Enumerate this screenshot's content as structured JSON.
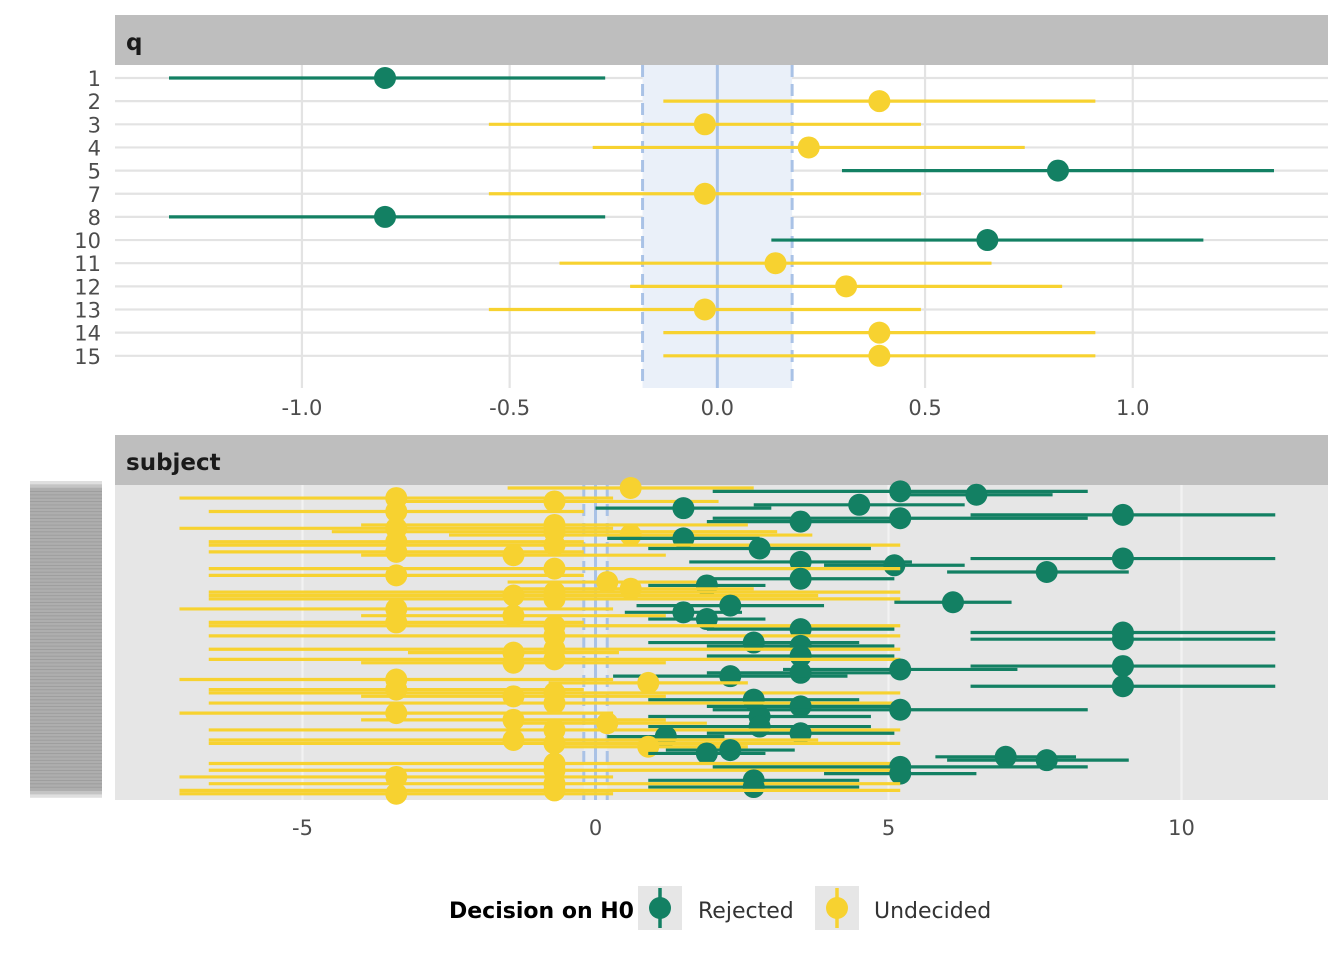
{
  "colors": {
    "rejected": "#138063",
    "undecided": "#F7D230",
    "rope_fill": "#EAF0F9",
    "rope_line": "#A9C2E6",
    "strip_bg": "#BEBEBE",
    "panel_grey": "#E6E6E6",
    "grid": "#E3E3E3",
    "grid_on_grey": "#F2F2F2"
  },
  "legend": {
    "title": "Decision on H0",
    "items": [
      {
        "key": "rejected",
        "label": "Rejected"
      },
      {
        "key": "undecided",
        "label": "Undecided"
      }
    ]
  },
  "chart_data": [
    {
      "type": "forest",
      "facet": "q",
      "x_ticks": [
        -1.0,
        -0.5,
        0.0,
        0.5,
        1.0
      ],
      "x_tick_labels": [
        "-1.0",
        "-0.5",
        "0.0",
        "0.5",
        "1.0"
      ],
      "xlim": [
        -1.45,
        1.47
      ],
      "rope": [
        -0.18,
        0.18
      ],
      "reference": 0,
      "rows": [
        {
          "label": "1",
          "est": -0.8,
          "lo": -1.32,
          "hi": -0.27,
          "decision": "rejected"
        },
        {
          "label": "2",
          "est": 0.39,
          "lo": -0.13,
          "hi": 0.91,
          "decision": "undecided"
        },
        {
          "label": "3",
          "est": -0.03,
          "lo": -0.55,
          "hi": 0.49,
          "decision": "undecided"
        },
        {
          "label": "4",
          "est": 0.22,
          "lo": -0.3,
          "hi": 0.74,
          "decision": "undecided"
        },
        {
          "label": "5",
          "est": 0.82,
          "lo": 0.3,
          "hi": 1.34,
          "decision": "rejected"
        },
        {
          "label": "7",
          "est": -0.03,
          "lo": -0.55,
          "hi": 0.49,
          "decision": "undecided"
        },
        {
          "label": "8",
          "est": -0.8,
          "lo": -1.32,
          "hi": -0.27,
          "decision": "rejected"
        },
        {
          "label": "10",
          "est": 0.65,
          "lo": 0.13,
          "hi": 1.17,
          "decision": "rejected"
        },
        {
          "label": "11",
          "est": 0.14,
          "lo": -0.38,
          "hi": 0.66,
          "decision": "undecided"
        },
        {
          "label": "12",
          "est": 0.31,
          "lo": -0.21,
          "hi": 0.83,
          "decision": "undecided"
        },
        {
          "label": "13",
          "est": -0.03,
          "lo": -0.55,
          "hi": 0.49,
          "decision": "undecided"
        },
        {
          "label": "14",
          "est": 0.39,
          "lo": -0.13,
          "hi": 0.91,
          "decision": "undecided"
        },
        {
          "label": "15",
          "est": 0.39,
          "lo": -0.13,
          "hi": 0.91,
          "decision": "undecided"
        }
      ]
    },
    {
      "type": "forest",
      "facet": "subject",
      "x_ticks": [
        -5,
        0,
        5,
        10
      ],
      "x_tick_labels": [
        "-5",
        "0",
        "5",
        "10"
      ],
      "xlim": [
        -8.2,
        12.5
      ],
      "rope": [
        -0.2,
        0.2
      ],
      "reference": 0,
      "y_labels_note": "Labels overlap and are illegible in the original",
      "rows": [
        {
          "est": 0.6,
          "lo": -1.5,
          "hi": 2.7,
          "decision": "undecided"
        },
        {
          "est": 5.2,
          "lo": 2.0,
          "hi": 8.4,
          "decision": "rejected"
        },
        {
          "est": 6.5,
          "lo": 5.2,
          "hi": 7.8,
          "decision": "rejected"
        },
        {
          "est": -3.4,
          "lo": -7.1,
          "hi": 0.3,
          "decision": "undecided"
        },
        {
          "est": -0.7,
          "lo": -3.5,
          "hi": 2.1,
          "decision": "undecided"
        },
        {
          "est": 4.5,
          "lo": 2.7,
          "hi": 6.3,
          "decision": "rejected"
        },
        {
          "est": 1.5,
          "lo": 0.0,
          "hi": 3.0,
          "decision": "rejected"
        },
        {
          "est": -3.4,
          "lo": -6.6,
          "hi": -0.2,
          "decision": "undecided"
        },
        {
          "est": 9.0,
          "lo": 6.4,
          "hi": 11.6,
          "decision": "rejected"
        },
        {
          "est": 5.2,
          "lo": 2.0,
          "hi": 8.4,
          "decision": "rejected"
        },
        {
          "est": 3.5,
          "lo": 1.9,
          "hi": 5.1,
          "decision": "rejected"
        },
        {
          "est": -0.7,
          "lo": -4.0,
          "hi": 2.6,
          "decision": "undecided"
        },
        {
          "est": -3.4,
          "lo": -7.1,
          "hi": 0.3,
          "decision": "undecided"
        },
        {
          "est": -0.7,
          "lo": -4.5,
          "hi": 3.1,
          "decision": "undecided"
        },
        {
          "est": 0.6,
          "lo": -2.5,
          "hi": 3.7,
          "decision": "undecided"
        },
        {
          "est": 1.5,
          "lo": 0.2,
          "hi": 2.8,
          "decision": "rejected"
        },
        {
          "est": -3.4,
          "lo": -6.6,
          "hi": -0.2,
          "decision": "undecided"
        },
        {
          "est": -0.7,
          "lo": -6.6,
          "hi": 5.2,
          "decision": "undecided"
        },
        {
          "est": 2.8,
          "lo": 0.9,
          "hi": 4.7,
          "decision": "rejected"
        },
        {
          "est": -3.4,
          "lo": -6.6,
          "hi": -0.2,
          "decision": "undecided"
        },
        {
          "est": -1.4,
          "lo": -4.0,
          "hi": 1.2,
          "decision": "undecided"
        },
        {
          "est": 9.0,
          "lo": 6.4,
          "hi": 11.6,
          "decision": "rejected"
        },
        {
          "est": 3.5,
          "lo": 1.6,
          "hi": 5.4,
          "decision": "rejected"
        },
        {
          "est": 5.1,
          "lo": 3.9,
          "hi": 6.3,
          "decision": "rejected"
        },
        {
          "est": -0.7,
          "lo": -6.6,
          "hi": 5.2,
          "decision": "undecided"
        },
        {
          "est": 7.7,
          "lo": 6.0,
          "hi": 9.1,
          "decision": "rejected"
        },
        {
          "est": -3.4,
          "lo": -6.6,
          "hi": -0.2,
          "decision": "undecided"
        },
        {
          "est": 3.5,
          "lo": 1.9,
          "hi": 5.1,
          "decision": "rejected"
        },
        {
          "est": 0.2,
          "lo": -1.5,
          "hi": 1.9,
          "decision": "undecided"
        },
        {
          "est": 1.9,
          "lo": 0.9,
          "hi": 2.9,
          "decision": "rejected"
        },
        {
          "est": 0.6,
          "lo": -1.5,
          "hi": 2.7,
          "decision": "undecided"
        },
        {
          "est": -0.7,
          "lo": -6.6,
          "hi": 5.2,
          "decision": "undecided"
        },
        {
          "est": -1.4,
          "lo": -6.6,
          "hi": 3.8,
          "decision": "undecided"
        },
        {
          "est": -0.7,
          "lo": -6.6,
          "hi": 5.2,
          "decision": "undecided"
        },
        {
          "est": 6.1,
          "lo": 5.1,
          "hi": 7.1,
          "decision": "rejected"
        },
        {
          "est": 2.3,
          "lo": 0.7,
          "hi": 3.9,
          "decision": "rejected"
        },
        {
          "est": -3.4,
          "lo": -7.1,
          "hi": 0.3,
          "decision": "undecided"
        },
        {
          "est": 1.5,
          "lo": 0.5,
          "hi": 2.5,
          "decision": "rejected"
        },
        {
          "est": -1.4,
          "lo": -4.0,
          "hi": 1.2,
          "decision": "undecided"
        },
        {
          "est": 1.9,
          "lo": 0.9,
          "hi": 2.9,
          "decision": "rejected"
        },
        {
          "est": -3.4,
          "lo": -6.6,
          "hi": -0.2,
          "decision": "undecided"
        },
        {
          "est": -0.7,
          "lo": -6.6,
          "hi": 5.2,
          "decision": "undecided"
        },
        {
          "est": 3.5,
          "lo": 1.9,
          "hi": 5.1,
          "decision": "rejected"
        },
        {
          "est": 9.0,
          "lo": 6.4,
          "hi": 11.6,
          "decision": "rejected"
        },
        {
          "est": -0.7,
          "lo": -6.6,
          "hi": 5.2,
          "decision": "undecided"
        },
        {
          "est": 9.0,
          "lo": 6.4,
          "hi": 11.6,
          "decision": "rejected"
        },
        {
          "est": 2.7,
          "lo": 0.9,
          "hi": 4.5,
          "decision": "rejected"
        },
        {
          "est": 3.5,
          "lo": 1.9,
          "hi": 5.1,
          "decision": "rejected"
        },
        {
          "est": -0.7,
          "lo": -6.6,
          "hi": 5.2,
          "decision": "undecided"
        },
        {
          "est": -1.4,
          "lo": -3.2,
          "hi": 0.4,
          "decision": "undecided"
        },
        {
          "est": 3.5,
          "lo": 1.9,
          "hi": 5.1,
          "decision": "rejected"
        },
        {
          "est": -0.7,
          "lo": -6.6,
          "hi": 5.2,
          "decision": "undecided"
        },
        {
          "est": -1.4,
          "lo": -4.0,
          "hi": 1.2,
          "decision": "undecided"
        },
        {
          "est": 9.0,
          "lo": 6.4,
          "hi": 11.6,
          "decision": "rejected"
        },
        {
          "est": 5.2,
          "lo": 3.2,
          "hi": 7.2,
          "decision": "rejected"
        },
        {
          "est": 3.5,
          "lo": 1.9,
          "hi": 5.1,
          "decision": "rejected"
        },
        {
          "est": 2.3,
          "lo": 0.3,
          "hi": 4.3,
          "decision": "rejected"
        },
        {
          "est": -3.4,
          "lo": -7.1,
          "hi": 0.3,
          "decision": "undecided"
        },
        {
          "est": 0.9,
          "lo": -0.8,
          "hi": 2.6,
          "decision": "undecided"
        },
        {
          "est": 9.0,
          "lo": 6.4,
          "hi": 11.6,
          "decision": "rejected"
        },
        {
          "est": -3.4,
          "lo": -6.6,
          "hi": -0.2,
          "decision": "undecided"
        },
        {
          "est": -0.7,
          "lo": -6.6,
          "hi": 5.2,
          "decision": "undecided"
        },
        {
          "est": -1.4,
          "lo": -4.0,
          "hi": 1.2,
          "decision": "undecided"
        },
        {
          "est": 2.7,
          "lo": 0.9,
          "hi": 4.5,
          "decision": "rejected"
        },
        {
          "est": -0.7,
          "lo": -6.6,
          "hi": 5.2,
          "decision": "undecided"
        },
        {
          "est": 3.5,
          "lo": 1.9,
          "hi": 5.1,
          "decision": "rejected"
        },
        {
          "est": 5.2,
          "lo": 2.0,
          "hi": 8.4,
          "decision": "rejected"
        },
        {
          "est": -3.4,
          "lo": -7.1,
          "hi": 0.3,
          "decision": "undecided"
        },
        {
          "est": 2.8,
          "lo": 0.9,
          "hi": 4.7,
          "decision": "rejected"
        },
        {
          "est": -1.4,
          "lo": -4.0,
          "hi": 1.2,
          "decision": "undecided"
        },
        {
          "est": 0.2,
          "lo": -1.5,
          "hi": 1.9,
          "decision": "undecided"
        },
        {
          "est": 2.8,
          "lo": 0.9,
          "hi": 4.7,
          "decision": "rejected"
        },
        {
          "est": -0.7,
          "lo": -6.6,
          "hi": 5.2,
          "decision": "undecided"
        },
        {
          "est": 3.5,
          "lo": 1.9,
          "hi": 5.1,
          "decision": "rejected"
        },
        {
          "est": 1.2,
          "lo": 0.2,
          "hi": 2.2,
          "decision": "rejected"
        },
        {
          "est": -1.4,
          "lo": -6.6,
          "hi": 3.8,
          "decision": "undecided"
        },
        {
          "est": -0.7,
          "lo": -6.6,
          "hi": 5.2,
          "decision": "undecided"
        },
        {
          "est": 0.9,
          "lo": -0.8,
          "hi": 2.6,
          "decision": "undecided"
        },
        {
          "est": 2.3,
          "lo": 1.2,
          "hi": 3.4,
          "decision": "rejected"
        },
        {
          "est": 1.9,
          "lo": 0.9,
          "hi": 2.9,
          "decision": "rejected"
        },
        {
          "est": 7.0,
          "lo": 5.8,
          "hi": 8.2,
          "decision": "rejected"
        },
        {
          "est": 7.7,
          "lo": 6.0,
          "hi": 9.1,
          "decision": "rejected"
        },
        {
          "est": -0.7,
          "lo": -6.6,
          "hi": 5.2,
          "decision": "undecided"
        },
        {
          "est": 5.2,
          "lo": 2.0,
          "hi": 8.4,
          "decision": "rejected"
        },
        {
          "est": -0.7,
          "lo": -6.6,
          "hi": 5.2,
          "decision": "undecided"
        },
        {
          "est": 5.2,
          "lo": 3.9,
          "hi": 6.5,
          "decision": "rejected"
        },
        {
          "est": -3.4,
          "lo": -7.1,
          "hi": 0.3,
          "decision": "undecided"
        },
        {
          "est": 2.7,
          "lo": 0.9,
          "hi": 4.5,
          "decision": "rejected"
        },
        {
          "est": -0.7,
          "lo": -6.6,
          "hi": 5.2,
          "decision": "undecided"
        },
        {
          "est": 2.7,
          "lo": 0.9,
          "hi": 4.5,
          "decision": "rejected"
        },
        {
          "est": -0.7,
          "lo": -7.1,
          "hi": 5.2,
          "decision": "undecided"
        },
        {
          "est": -3.4,
          "lo": -7.1,
          "hi": 0.3,
          "decision": "undecided"
        }
      ]
    }
  ]
}
